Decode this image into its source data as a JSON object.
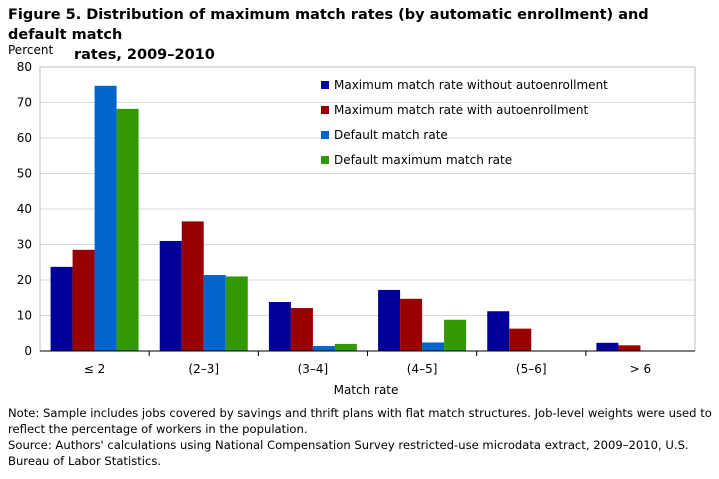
{
  "figure": {
    "title_line1": "Figure 5. Distribution of maximum match rates (by automatic enrollment) and default match",
    "title_line2": "rates, 2009–2010",
    "note": "Note: Sample includes jobs covered by savings and thrift plans with flat match structures. Job-level weights were used to reflect the percentage of workers in the population.",
    "source": "Source: Authors' calculations using National Compensation Survey restricted-use microdata extract, 2009–2010, U.S. Bureau of Labor Statistics."
  },
  "chart_data": {
    "type": "bar",
    "title": "Distribution of maximum match rates (by automatic enrollment) and default match rates, 2009–2010",
    "ylabel": "Percent",
    "xlabel": "Match rate",
    "ylim": [
      0,
      80
    ],
    "yticks": [
      0,
      10,
      20,
      30,
      40,
      50,
      60,
      70,
      80
    ],
    "grid": true,
    "legend_position": "top-right",
    "categories": [
      "≤ 2",
      "(2–3]",
      "(3–4]",
      "(4–5]",
      "(5–6]",
      "> 6"
    ],
    "series": [
      {
        "name": "Maximum match rate without autoenrollment",
        "color": "#000099",
        "values": [
          23.7,
          31.0,
          13.8,
          17.2,
          11.2,
          2.3
        ]
      },
      {
        "name": "Maximum match rate with autoenrollment",
        "color": "#990000",
        "values": [
          28.5,
          36.5,
          12.1,
          14.7,
          6.3,
          1.6
        ]
      },
      {
        "name": "Default match rate",
        "color": "#0066cc",
        "values": [
          74.7,
          21.4,
          1.4,
          2.4,
          0,
          0
        ]
      },
      {
        "name": "Default maximum match rate",
        "color": "#339900",
        "values": [
          68.2,
          21.0,
          2.0,
          8.8,
          0,
          0
        ]
      }
    ]
  }
}
